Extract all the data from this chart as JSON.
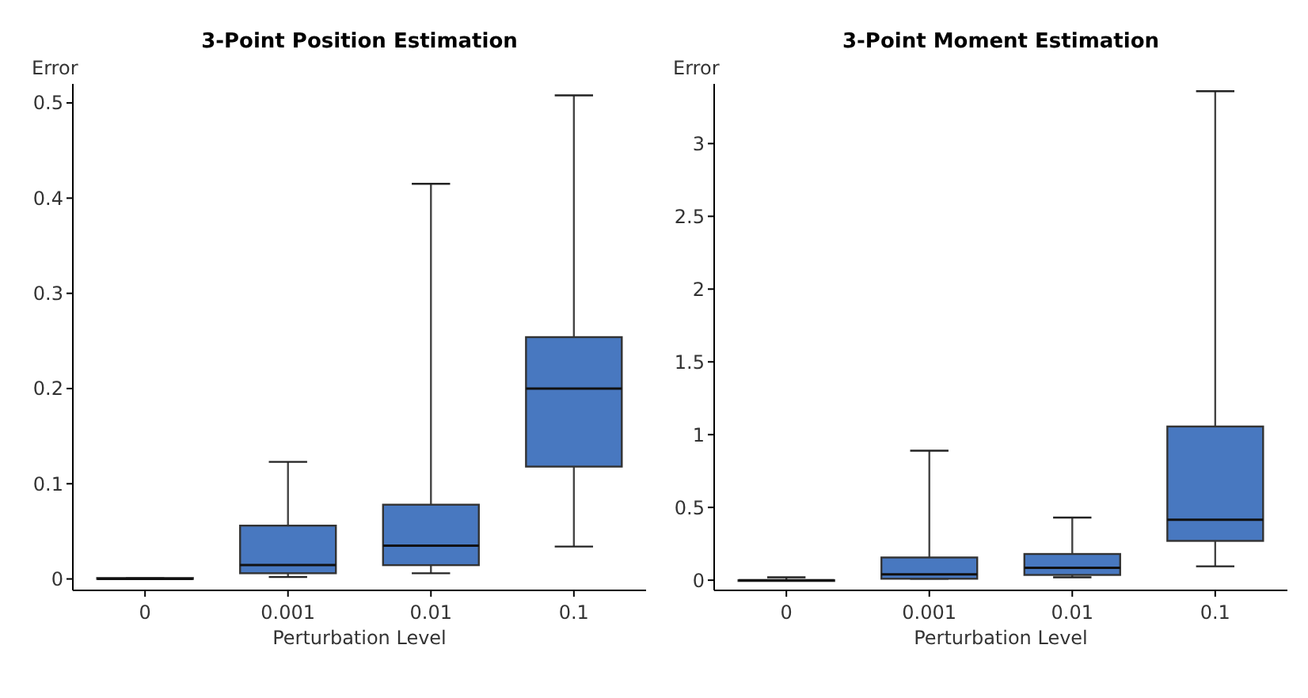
{
  "chart_data": [
    {
      "type": "box",
      "title": "3-Point Position Estimation",
      "xlabel": "Perturbation Level",
      "ylabel": "Error",
      "categories": [
        "0",
        "0.001",
        "0.01",
        "0.1"
      ],
      "color": "#4878c0",
      "ylim": [
        -0.012,
        0.52
      ],
      "yticks": [
        0,
        0.1,
        0.2,
        0.3,
        0.4,
        0.5
      ],
      "grid": false,
      "boxes": [
        {
          "low": 0,
          "q1": 0,
          "median": 0,
          "q3": 0.001,
          "high": 0.001
        },
        {
          "low": 0.002,
          "q1": 0.006,
          "median": 0.0145,
          "q3": 0.056,
          "high": 0.123
        },
        {
          "low": 0.006,
          "q1": 0.0145,
          "median": 0.035,
          "q3": 0.078,
          "high": 0.415
        },
        {
          "low": 0.034,
          "q1": 0.118,
          "median": 0.2,
          "q3": 0.254,
          "high": 0.508
        }
      ]
    },
    {
      "type": "box",
      "title": "3-Point Moment Estimation",
      "xlabel": "Perturbation Level",
      "ylabel": "Error",
      "categories": [
        "0",
        "0.001",
        "0.01",
        "0.1"
      ],
      "color": "#4878c0",
      "ylim": [
        -0.07,
        3.41
      ],
      "yticks": [
        0,
        0.5,
        1,
        1.5,
        2,
        2.5,
        3
      ],
      "grid": false,
      "boxes": [
        {
          "low": 0,
          "q1": 0,
          "median": 0,
          "q3": 0,
          "high": 0.02
        },
        {
          "low": 0.01,
          "q1": 0.01,
          "median": 0.04,
          "q3": 0.156,
          "high": 0.89
        },
        {
          "low": 0.02,
          "q1": 0.036,
          "median": 0.085,
          "q3": 0.18,
          "high": 0.43
        },
        {
          "low": 0.095,
          "q1": 0.27,
          "median": 0.415,
          "q3": 1.056,
          "high": 3.36
        }
      ]
    }
  ]
}
